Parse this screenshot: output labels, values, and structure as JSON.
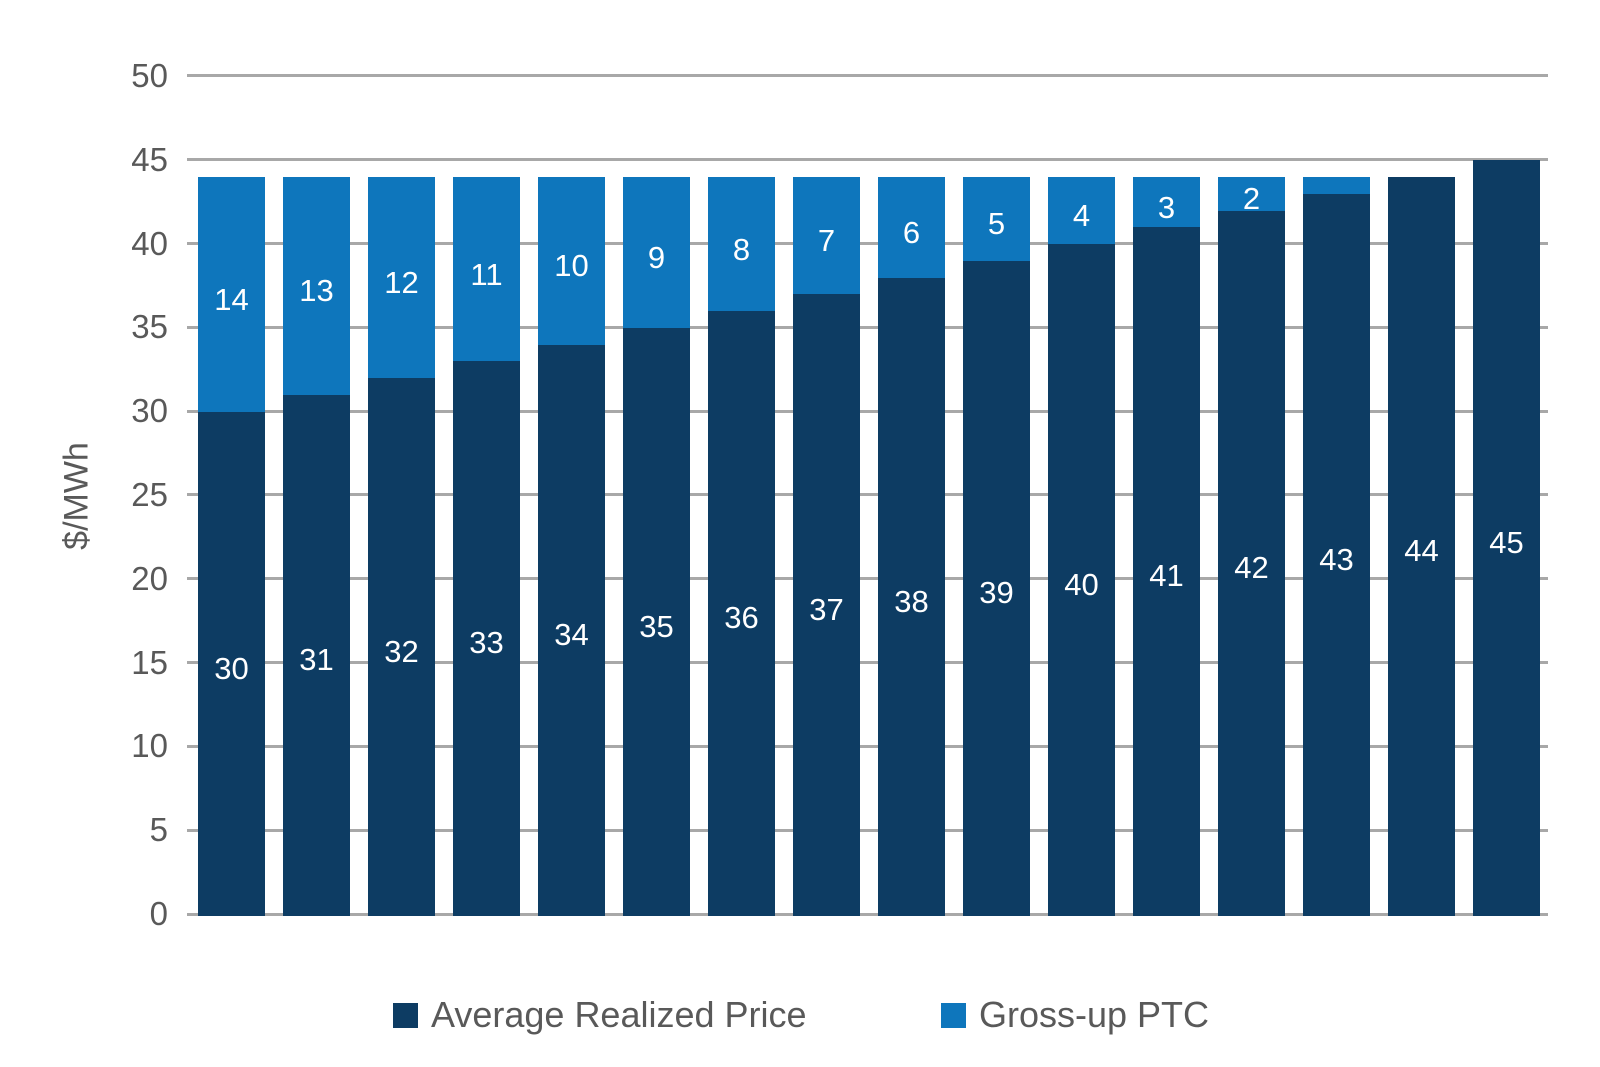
{
  "chart_data": {
    "type": "bar",
    "stacked": true,
    "ylabel": "$/MWh",
    "ylim": [
      0,
      50
    ],
    "yticks": [
      0,
      5,
      10,
      15,
      20,
      25,
      30,
      35,
      40,
      45,
      50
    ],
    "grid": "horizontal",
    "legend_position": "bottom",
    "n_bars": 16,
    "series": [
      {
        "name": "Average Realized Price",
        "color": "#0d3c63",
        "values": [
          30,
          31,
          32,
          33,
          34,
          35,
          36,
          37,
          38,
          39,
          40,
          41,
          42,
          43,
          44,
          45
        ]
      },
      {
        "name": "Gross-up PTC",
        "color": "#0e76bc",
        "values": [
          14,
          13,
          12,
          11,
          10,
          9,
          8,
          7,
          6,
          5,
          4,
          3,
          2,
          1,
          0,
          0
        ]
      }
    ],
    "bar_totals": [
      44,
      44,
      44,
      44,
      44,
      44,
      44,
      44,
      44,
      44,
      44,
      44,
      44,
      44,
      44,
      45
    ],
    "bar_label_min_value_shown": 2,
    "bar_label_color": "#ffffff"
  },
  "colors": {
    "background": "#ffffff",
    "gridline": "#a8a8a8",
    "axis_text": "#595959",
    "legend_text": "#595959"
  }
}
